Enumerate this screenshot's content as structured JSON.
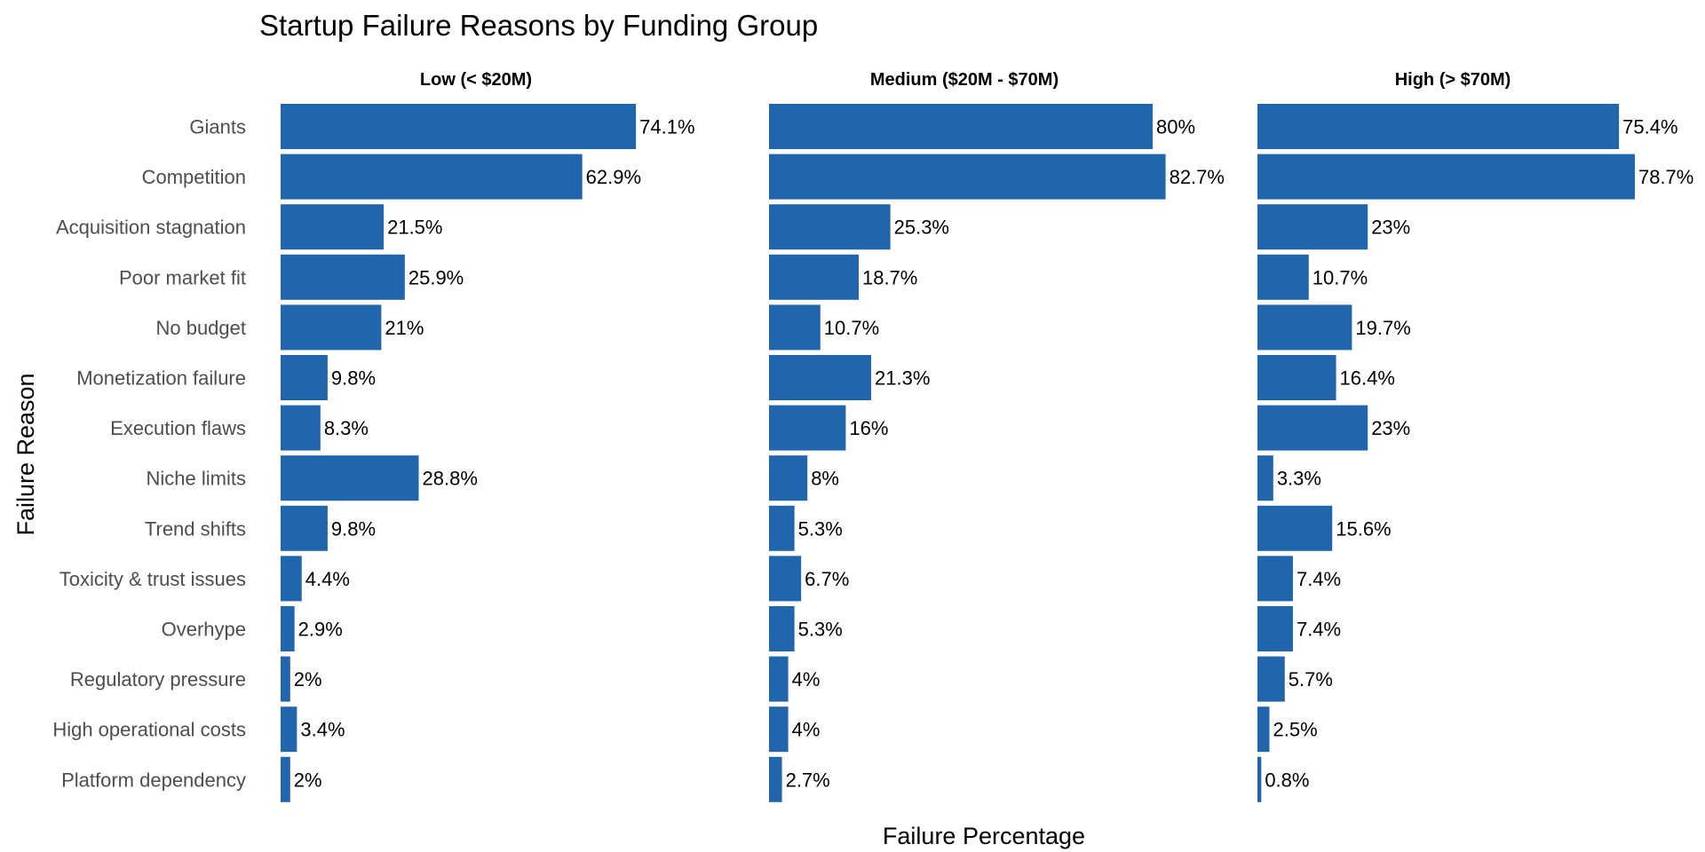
{
  "chart_data": {
    "type": "bar",
    "orientation": "horizontal",
    "title": "Startup Failure Reasons by Funding Group",
    "xlabel": "Failure Percentage",
    "ylabel": "Failure Reason",
    "grid": false,
    "bar_color": "#2166AC",
    "value_suffix": "%",
    "categories": [
      "Giants",
      "Competition",
      "Acquisition stagnation",
      "Poor market fit",
      "No budget",
      "Monetization failure",
      "Execution flaws",
      "Niche limits",
      "Trend shifts",
      "Toxicity & trust issues",
      "Overhype",
      "Regulatory pressure",
      "High operational costs",
      "Platform dependency"
    ],
    "series": [
      {
        "name": "Low (< $20M)",
        "values": [
          74.1,
          62.9,
          21.5,
          25.9,
          21,
          9.8,
          8.3,
          28.8,
          9.8,
          4.4,
          2.9,
          2,
          3.4,
          2
        ]
      },
      {
        "name": "Medium ($20M - $70M)",
        "values": [
          80,
          82.7,
          25.3,
          18.7,
          10.7,
          21.3,
          16,
          8,
          5.3,
          6.7,
          5.3,
          4,
          4,
          2.7
        ]
      },
      {
        "name": "High (> $70M)",
        "values": [
          75.4,
          78.7,
          23,
          10.7,
          19.7,
          16.4,
          23,
          3.3,
          15.6,
          7.4,
          7.4,
          5.7,
          2.5,
          0.8
        ]
      }
    ],
    "xlim": [
      0,
      100
    ]
  }
}
